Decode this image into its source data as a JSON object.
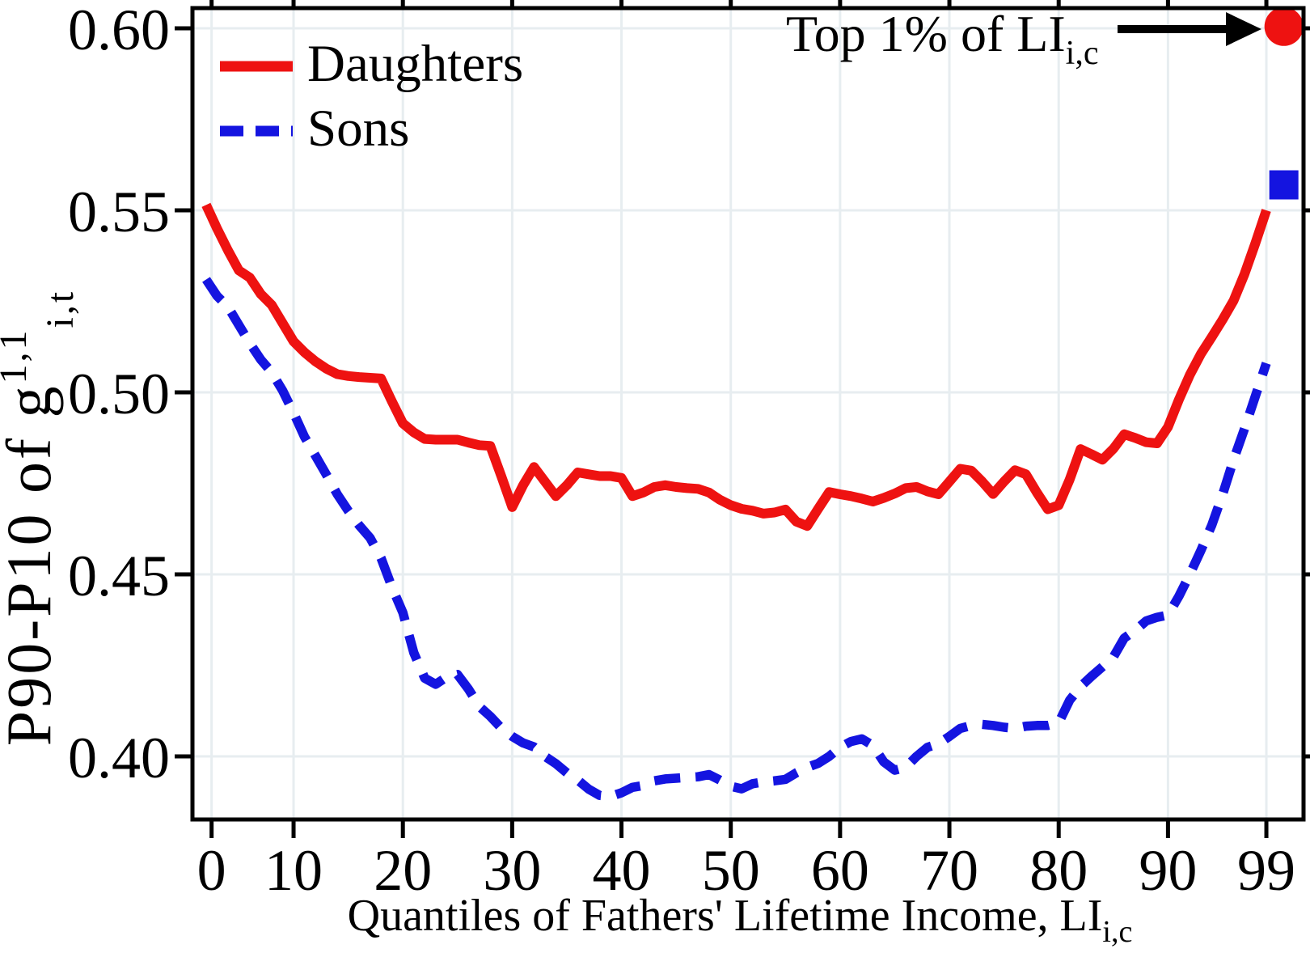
{
  "figure": {
    "background": "#ffffff",
    "frame_color": "#000000",
    "grid_color": "#e7edf0"
  },
  "legend": {
    "position": "top-left",
    "items": [
      {
        "label": "Daughters",
        "color": "#ee1211",
        "style": "solid"
      },
      {
        "label": "Sons",
        "color": "#1414e0",
        "style": "dashed"
      }
    ]
  },
  "annotation": {
    "text": "Top 1% of LI",
    "sub": "i,c",
    "arrow_color": "#000000"
  },
  "x_axis": {
    "label_main": "Quantiles of Fathers' Lifetime Income, LI",
    "label_sub": "i,c",
    "ticks": [
      {
        "label": "0",
        "pos": 2.5
      },
      {
        "label": "10",
        "pos": 10
      },
      {
        "label": "20",
        "pos": 20
      },
      {
        "label": "30",
        "pos": 30
      },
      {
        "label": "40",
        "pos": 40
      },
      {
        "label": "50",
        "pos": 50
      },
      {
        "label": "60",
        "pos": 60
      },
      {
        "label": "70",
        "pos": 70
      },
      {
        "label": "80",
        "pos": 80
      },
      {
        "label": "90",
        "pos": 90
      },
      {
        "label": "99",
        "pos": 99
      }
    ]
  },
  "y_axis": {
    "label_main": "P90-P10 of g",
    "label_sup": "1,1",
    "label_sub": "i,t",
    "ticks": [
      {
        "label": "0.40",
        "value": 0.4
      },
      {
        "label": "0.45",
        "value": 0.45
      },
      {
        "label": "0.50",
        "value": 0.5
      },
      {
        "label": "0.55",
        "value": 0.55
      },
      {
        "label": "0.60",
        "value": 0.6
      }
    ]
  },
  "chart_data": {
    "type": "line",
    "title": "",
    "xlabel": "Quantiles of Fathers' Lifetime Income, LI_ic",
    "ylabel": "P90-P10 of g^1,1_it",
    "xlim": [
      0.75,
      102.4
    ],
    "ylim": [
      0.38267,
      0.60556
    ],
    "grid": true,
    "legend_position": "top-left",
    "x": [
      2,
      3,
      4,
      5,
      6,
      7,
      8,
      9,
      10,
      11,
      12,
      13,
      14,
      15,
      16,
      17,
      18,
      19,
      20,
      21,
      22,
      23,
      24,
      25,
      26,
      27,
      28,
      29,
      30,
      31,
      32,
      33,
      34,
      35,
      36,
      37,
      38,
      39,
      40,
      41,
      42,
      43,
      44,
      45,
      46,
      47,
      48,
      49,
      50,
      51,
      52,
      53,
      54,
      55,
      56,
      57,
      58,
      59,
      60,
      61,
      62,
      63,
      64,
      65,
      66,
      67,
      68,
      69,
      70,
      71,
      72,
      73,
      74,
      75,
      76,
      77,
      78,
      79,
      80,
      81,
      82,
      83,
      84,
      85,
      86,
      87,
      88,
      89,
      90,
      91,
      92,
      93,
      94,
      95,
      96,
      97,
      98,
      99
    ],
    "series": [
      {
        "name": "Daughters",
        "color": "#ee1211",
        "dash": null,
        "width": 12,
        "values": [
          0.5515,
          0.545,
          0.539,
          0.5335,
          0.5315,
          0.527,
          0.524,
          0.519,
          0.514,
          0.511,
          0.5085,
          0.5065,
          0.505,
          0.5045,
          0.5042,
          0.504,
          0.5038,
          0.4975,
          0.4915,
          0.489,
          0.4872,
          0.487,
          0.487,
          0.487,
          0.4862,
          0.4855,
          0.4853,
          0.477,
          0.4685,
          0.4745,
          0.4795,
          0.4755,
          0.4715,
          0.4745,
          0.478,
          0.4775,
          0.477,
          0.477,
          0.4765,
          0.4715,
          0.4725,
          0.474,
          0.4745,
          0.474,
          0.4737,
          0.4735,
          0.4725,
          0.4705,
          0.469,
          0.468,
          0.4675,
          0.4667,
          0.467,
          0.4678,
          0.4645,
          0.4633,
          0.468,
          0.4726,
          0.472,
          0.4715,
          0.4708,
          0.47,
          0.471,
          0.4722,
          0.4737,
          0.474,
          0.4728,
          0.472,
          0.4755,
          0.479,
          0.4785,
          0.4755,
          0.4721,
          0.4755,
          0.4786,
          0.4775,
          0.4725,
          0.4679,
          0.469,
          0.476,
          0.4844,
          0.483,
          0.4815,
          0.4845,
          0.4885,
          0.4875,
          0.4863,
          0.486,
          0.4905,
          0.498,
          0.5048,
          0.5105,
          0.5152,
          0.52,
          0.5252,
          0.5325,
          0.541,
          0.55
        ]
      },
      {
        "name": "Sons",
        "color": "#1414e0",
        "dash": [
          32,
          19
        ],
        "width": 11.5,
        "values": [
          0.531,
          0.5265,
          0.5235,
          0.5185,
          0.5135,
          0.509,
          0.5055,
          0.5005,
          0.4944,
          0.4878,
          0.4826,
          0.4774,
          0.472,
          0.4675,
          0.4635,
          0.46,
          0.4545,
          0.4465,
          0.4395,
          0.4285,
          0.4215,
          0.4198,
          0.4218,
          0.4225,
          0.4185,
          0.4137,
          0.411,
          0.4078,
          0.4055,
          0.4037,
          0.4026,
          0.4,
          0.398,
          0.3955,
          0.3935,
          0.391,
          0.3893,
          0.389,
          0.39,
          0.3915,
          0.392,
          0.3933,
          0.3938,
          0.394,
          0.3942,
          0.3944,
          0.395,
          0.3935,
          0.3918,
          0.3911,
          0.3925,
          0.393,
          0.3933,
          0.3937,
          0.3955,
          0.397,
          0.3981,
          0.4,
          0.4025,
          0.4041,
          0.4048,
          0.403,
          0.3985,
          0.3962,
          0.397,
          0.4,
          0.4025,
          0.4035,
          0.4055,
          0.4077,
          0.4085,
          0.4088,
          0.4085,
          0.408,
          0.4077,
          0.4083,
          0.4085,
          0.4085,
          0.4092,
          0.4154,
          0.4192,
          0.422,
          0.4246,
          0.4273,
          0.4325,
          0.4346,
          0.4372,
          0.4382,
          0.4388,
          0.444,
          0.45,
          0.4565,
          0.4635,
          0.472,
          0.4815,
          0.49,
          0.499,
          0.508
        ]
      }
    ],
    "markers": [
      {
        "name": "top1-daughters",
        "series": "Daughters",
        "shape": "circle",
        "color": "#ee1211",
        "x": 100.6,
        "value": 0.6005
      },
      {
        "name": "top1-sons",
        "series": "Sons",
        "shape": "square",
        "color": "#1414e0",
        "x": 100.6,
        "value": 0.557
      }
    ]
  }
}
